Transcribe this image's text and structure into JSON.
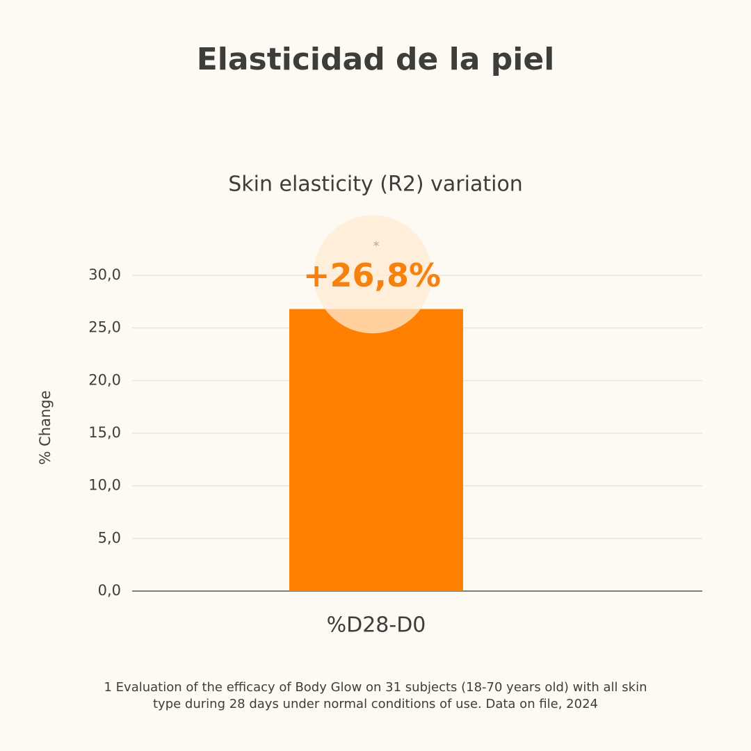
{
  "chart_data": {
    "type": "bar",
    "title": "Elasticidad de la piel",
    "subtitle": "Skin elasticity (R2) variation",
    "y_label": "% Change",
    "categories": [
      "%D28-D0"
    ],
    "values": [
      26.8
    ],
    "value_labels": [
      "+26,8%"
    ],
    "annotation": "*",
    "color": "#ff7f00",
    "ylim": [
      0,
      30
    ],
    "yticks": [
      {
        "value": 0,
        "label": "0,0"
      },
      {
        "value": 5,
        "label": "5,0"
      },
      {
        "value": 10,
        "label": "10,0"
      },
      {
        "value": 15,
        "label": "15,0"
      },
      {
        "value": 20,
        "label": "20,0"
      },
      {
        "value": 25,
        "label": "25,0"
      },
      {
        "value": 30,
        "label": "30,0"
      }
    ],
    "grid": true,
    "footnote": [
      "1 Evaluation of the efficacy of Body Glow on 31 subjects (18-70 years old) with all skin",
      "type during 28 days under normal conditions of use. Data on file, 2024"
    ]
  }
}
